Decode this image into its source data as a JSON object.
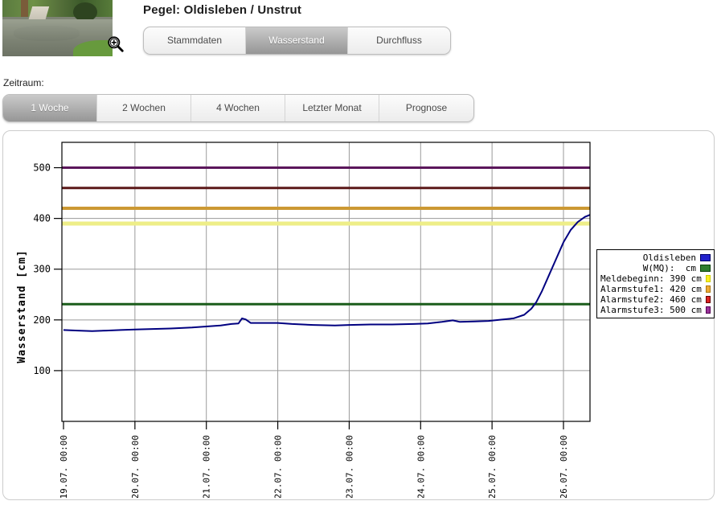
{
  "header": {
    "title": "Pegel: Oldisleben / Unstrut",
    "tabs": [
      {
        "label": "Stammdaten",
        "active": false
      },
      {
        "label": "Wasserstand",
        "active": true
      },
      {
        "label": "Durchfluss",
        "active": false
      }
    ]
  },
  "icons": {
    "photo_zoom": "magnifier-zoom-in-icon"
  },
  "zeitraum": {
    "label": "Zeitraum:",
    "tabs": [
      {
        "label": "1 Woche",
        "active": true
      },
      {
        "label": "2 Wochen",
        "active": false
      },
      {
        "label": "4 Wochen",
        "active": false
      },
      {
        "label": "Letzter Monat",
        "active": false
      },
      {
        "label": "Prognose",
        "active": false
      }
    ]
  },
  "chart_data": {
    "type": "line",
    "title": "",
    "xlabel": "",
    "ylabel": "Wasserstand [cm]",
    "ylim": [
      0,
      550
    ],
    "yticks": [
      100,
      200,
      300,
      400,
      500
    ],
    "xtick_labels": [
      "19.07. 00:00",
      "20.07. 00:00",
      "21.07. 00:00",
      "22.07. 00:00",
      "23.07. 00:00",
      "24.07. 00:00",
      "25.07. 00:00",
      "26.07. 00:00"
    ],
    "grid": true,
    "series": [
      {
        "name": "Oldisleben",
        "color": "#000080",
        "points": [
          [
            0,
            180
          ],
          [
            0.2,
            179
          ],
          [
            0.4,
            178
          ],
          [
            0.6,
            179
          ],
          [
            0.8,
            180
          ],
          [
            1.0,
            181
          ],
          [
            1.2,
            182
          ],
          [
            1.5,
            183
          ],
          [
            1.8,
            185
          ],
          [
            2.0,
            187
          ],
          [
            2.2,
            189
          ],
          [
            2.35,
            192
          ],
          [
            2.45,
            193
          ],
          [
            2.5,
            203
          ],
          [
            2.55,
            201
          ],
          [
            2.62,
            194
          ],
          [
            2.8,
            194
          ],
          [
            3.0,
            194
          ],
          [
            3.2,
            192
          ],
          [
            3.5,
            190
          ],
          [
            3.8,
            189
          ],
          [
            4.0,
            190
          ],
          [
            4.3,
            191
          ],
          [
            4.6,
            191
          ],
          [
            4.9,
            192
          ],
          [
            5.1,
            193
          ],
          [
            5.3,
            196
          ],
          [
            5.45,
            199
          ],
          [
            5.55,
            196
          ],
          [
            5.75,
            197
          ],
          [
            5.95,
            198
          ],
          [
            6.1,
            200
          ],
          [
            6.3,
            203
          ],
          [
            6.45,
            210
          ],
          [
            6.55,
            222
          ],
          [
            6.62,
            235
          ],
          [
            6.7,
            257
          ],
          [
            6.8,
            289
          ],
          [
            6.9,
            321
          ],
          [
            7.0,
            353
          ],
          [
            7.1,
            377
          ],
          [
            7.2,
            393
          ],
          [
            7.3,
            403
          ],
          [
            7.37,
            407
          ]
        ]
      }
    ],
    "reference_lines": [
      {
        "name": "W(MQ)",
        "value": 231,
        "color": "#1a5c1a",
        "width": 3
      },
      {
        "name": "Meldebeginn",
        "value": 390,
        "color": "#eeee88",
        "width": 5
      },
      {
        "name": "Alarmstufe1",
        "value": 420,
        "color": "#cc9933",
        "width": 4
      },
      {
        "name": "Alarmstufe2",
        "value": 460,
        "color": "#5c1919",
        "width": 3
      },
      {
        "name": "Alarmstufe3",
        "value": 500,
        "color": "#5b175b",
        "width": 3
      }
    ],
    "legend": {
      "position": "right",
      "entries": [
        {
          "label": "Oldisleben",
          "swatch": "#2222cc",
          "swatch_border": "#000066"
        },
        {
          "label": "W(MQ):  cm",
          "swatch": "#2e7d2e",
          "swatch_border": "#0a420a"
        },
        {
          "label": "Meldebeginn: 390 cm",
          "swatch": "#ffee22",
          "swatch_border": "#cccc00"
        },
        {
          "label": "Alarmstufe1: 420 cm",
          "swatch": "#eeaa33",
          "swatch_border": "#aa7711"
        },
        {
          "label": "Alarmstufe2: 460 cm",
          "swatch": "#dd2222",
          "swatch_border": "#660000"
        },
        {
          "label": "Alarmstufe3: 500 cm",
          "swatch": "#993399",
          "swatch_border": "#550055"
        }
      ]
    }
  }
}
